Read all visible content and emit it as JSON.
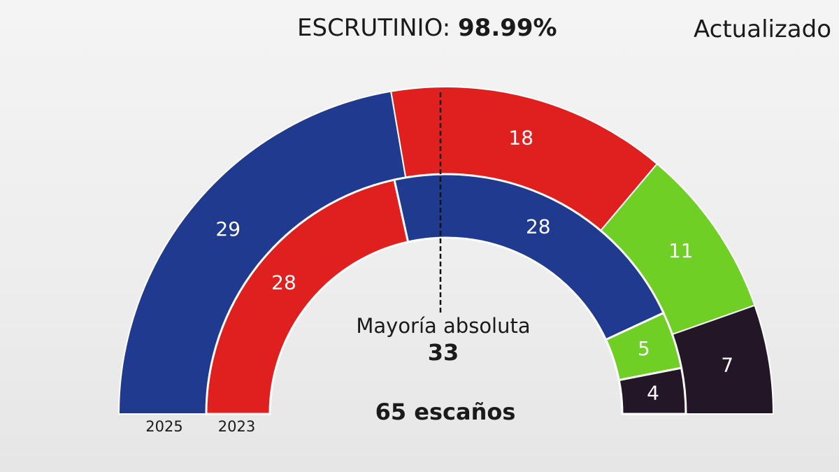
{
  "header": {
    "escrutinio_label": "ESCRUTINIO:",
    "escrutinio_value": "98.99%",
    "updated_label": "Actualizado"
  },
  "center": {
    "majority_label": "Mayoría absoluta",
    "majority_value": "33",
    "total_label": "65 escaños"
  },
  "colors": {
    "blue": "#1f3a8f",
    "red": "#e0201e",
    "green": "#6fcf24",
    "dark": "#231727"
  },
  "chart_data": {
    "type": "pie",
    "total_seats": 65,
    "majority": 33,
    "rings": [
      {
        "name": "2025",
        "segments": [
          {
            "value": 29,
            "color": "blue"
          },
          {
            "value": 18,
            "color": "red"
          },
          {
            "value": 11,
            "color": "green"
          },
          {
            "value": 7,
            "color": "dark"
          }
        ]
      },
      {
        "name": "2023",
        "segments": [
          {
            "value": 28,
            "color": "red"
          },
          {
            "value": 28,
            "color": "blue"
          },
          {
            "value": 5,
            "color": "green"
          },
          {
            "value": 4,
            "color": "dark"
          }
        ]
      }
    ]
  }
}
